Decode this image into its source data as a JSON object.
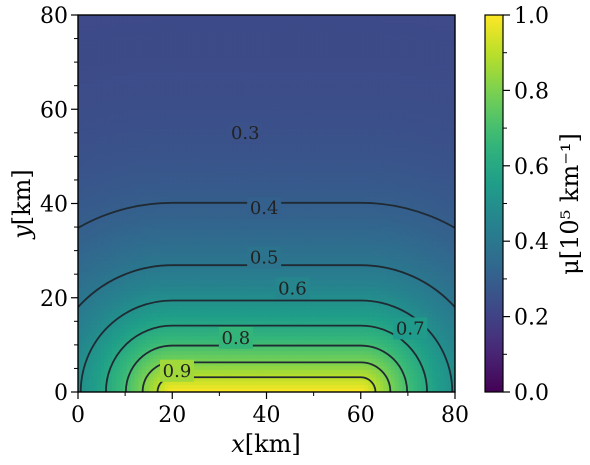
{
  "chart_data": {
    "type": "heatmap",
    "plot": "contour",
    "title": "",
    "xlabel": {
      "var": "x",
      "unit": "[km]"
    },
    "ylabel": {
      "var": "y",
      "unit": "[km]"
    },
    "xlim": [
      0,
      80
    ],
    "ylim": [
      0,
      80
    ],
    "x_ticks": [
      0,
      20,
      40,
      60,
      80
    ],
    "y_ticks": [
      0,
      20,
      40,
      60,
      80
    ],
    "x_tick_labels": [
      "0",
      "20",
      "40",
      "60",
      "80"
    ],
    "y_tick_labels": [
      "0",
      "20",
      "40",
      "60",
      "80"
    ],
    "colormap": "viridis",
    "colormap_stops": [
      "#440154",
      "#482878",
      "#3e4989",
      "#31688e",
      "#26828e",
      "#1f9e89",
      "#35b779",
      "#6ece58",
      "#b5de2b",
      "#fde725"
    ],
    "colorbar": {
      "range": [
        0,
        1
      ],
      "ticks": [
        0.0,
        0.2,
        0.4,
        0.6,
        0.8,
        1.0
      ],
      "tick_labels": [
        "0.0",
        "0.2",
        "0.4",
        "0.6",
        "0.8",
        "1.0"
      ],
      "label": "μ[10⁵ km⁻¹]"
    },
    "field": {
      "source_x_range": [
        20,
        60
      ],
      "source_y": 0,
      "peak": 1.0,
      "far_value": 0.22
    },
    "contour_levels": [
      0.3,
      0.4,
      0.5,
      0.6,
      0.7,
      0.8,
      0.9
    ],
    "contour_labels": [
      {
        "text": "0.3",
        "x": 35.5,
        "y": 55
      },
      {
        "text": "0.4",
        "x": 39.5,
        "y": 39
      },
      {
        "text": "0.5",
        "x": 39.5,
        "y": 28.5
      },
      {
        "text": "0.6",
        "x": 45.5,
        "y": 22
      },
      {
        "text": "0.7",
        "x": 70.5,
        "y": 13.5
      },
      {
        "text": "0.8",
        "x": 33.5,
        "y": 11.5
      },
      {
        "text": "0.9",
        "x": 21,
        "y": 4.5
      }
    ]
  }
}
